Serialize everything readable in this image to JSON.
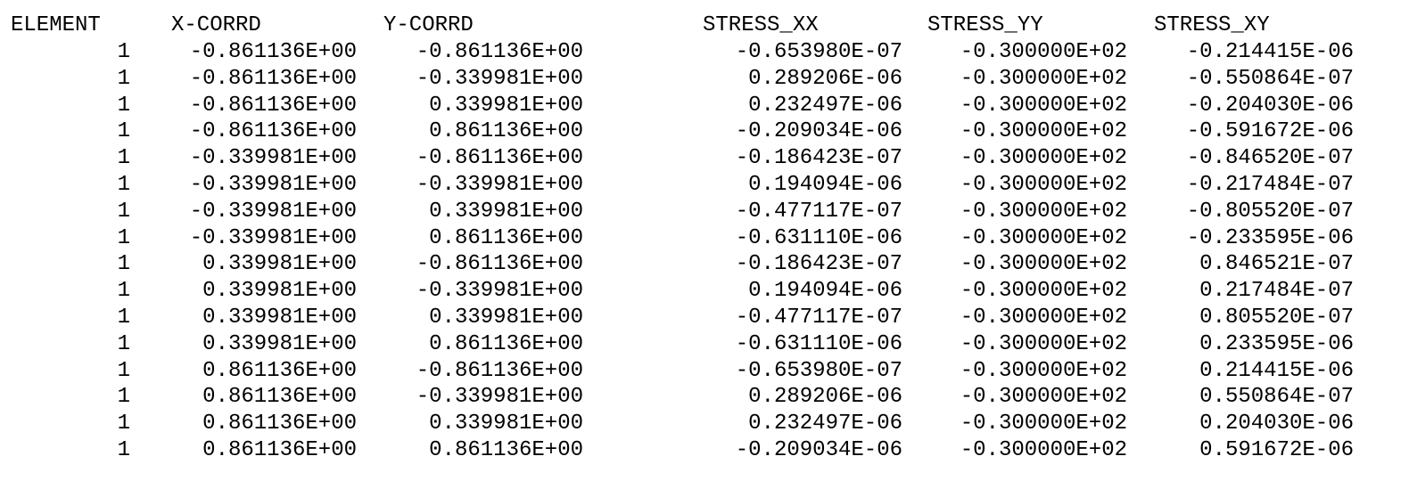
{
  "table": {
    "headers": [
      "ELEMENT",
      "X-CORRD",
      "Y-CORRD",
      "STRESS_XX",
      "STRESS_YY",
      "STRESS_XY"
    ],
    "rows": [
      [
        "1",
        "-0.861136E+00",
        "-0.861136E+00",
        "-0.653980E-07",
        "-0.300000E+02",
        "-0.214415E-06"
      ],
      [
        "1",
        "-0.861136E+00",
        "-0.339981E+00",
        "0.289206E-06",
        "-0.300000E+02",
        "-0.550864E-07"
      ],
      [
        "1",
        "-0.861136E+00",
        "0.339981E+00",
        "0.232497E-06",
        "-0.300000E+02",
        "-0.204030E-06"
      ],
      [
        "1",
        "-0.861136E+00",
        "0.861136E+00",
        "-0.209034E-06",
        "-0.300000E+02",
        "-0.591672E-06"
      ],
      [
        "1",
        "-0.339981E+00",
        "-0.861136E+00",
        "-0.186423E-07",
        "-0.300000E+02",
        "-0.846520E-07"
      ],
      [
        "1",
        "-0.339981E+00",
        "-0.339981E+00",
        "0.194094E-06",
        "-0.300000E+02",
        "-0.217484E-07"
      ],
      [
        "1",
        "-0.339981E+00",
        "0.339981E+00",
        "-0.477117E-07",
        "-0.300000E+02",
        "-0.805520E-07"
      ],
      [
        "1",
        "-0.339981E+00",
        "0.861136E+00",
        "-0.631110E-06",
        "-0.300000E+02",
        "-0.233595E-06"
      ],
      [
        "1",
        "0.339981E+00",
        "-0.861136E+00",
        "-0.186423E-07",
        "-0.300000E+02",
        "0.846521E-07"
      ],
      [
        "1",
        "0.339981E+00",
        "-0.339981E+00",
        "0.194094E-06",
        "-0.300000E+02",
        "0.217484E-07"
      ],
      [
        "1",
        "0.339981E+00",
        "0.339981E+00",
        "-0.477117E-07",
        "-0.300000E+02",
        "0.805520E-07"
      ],
      [
        "1",
        "0.339981E+00",
        "0.861136E+00",
        "-0.631110E-06",
        "-0.300000E+02",
        "0.233595E-06"
      ],
      [
        "1",
        "0.861136E+00",
        "-0.861136E+00",
        "-0.653980E-07",
        "-0.300000E+02",
        "0.214415E-06"
      ],
      [
        "1",
        "0.861136E+00",
        "-0.339981E+00",
        "0.289206E-06",
        "-0.300000E+02",
        "0.550864E-07"
      ],
      [
        "1",
        "0.861136E+00",
        "0.339981E+00",
        "0.232497E-06",
        "-0.300000E+02",
        "0.204030E-06"
      ],
      [
        "1",
        "0.861136E+00",
        "0.861136E+00",
        "-0.209034E-06",
        "-0.300000E+02",
        "0.591672E-06"
      ]
    ]
  }
}
